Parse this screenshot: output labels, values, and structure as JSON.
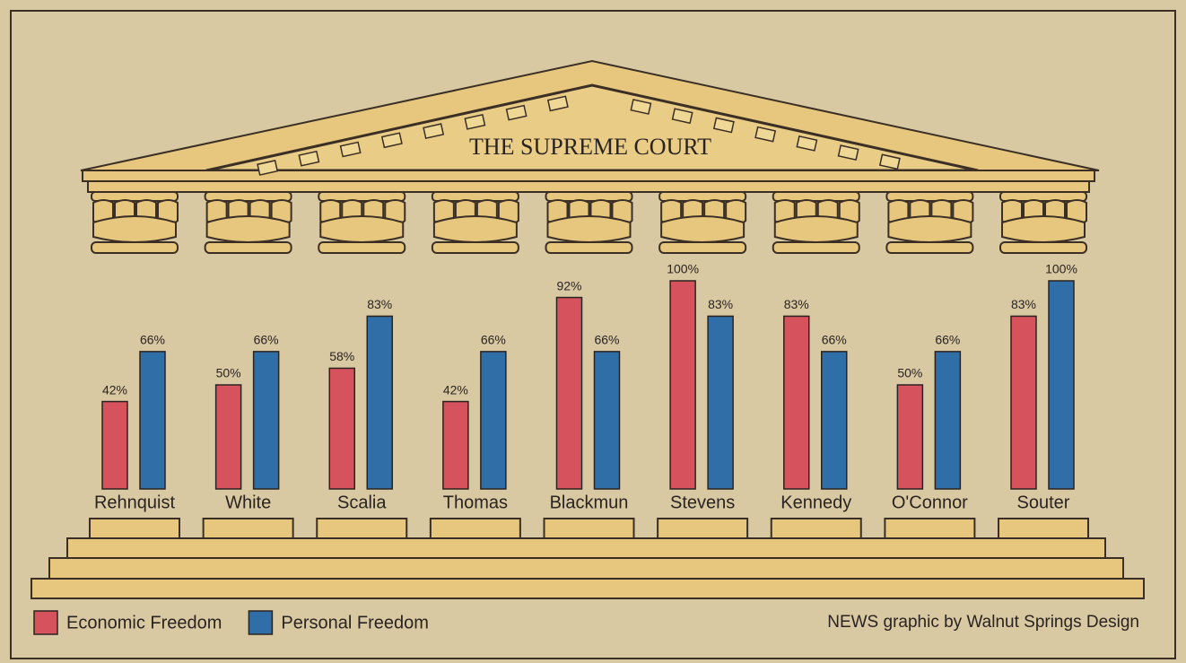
{
  "chart_data": {
    "type": "bar",
    "title": "THE SUPREME COURT",
    "categories": [
      "Rehnquist",
      "White",
      "Scalia",
      "Thomas",
      "Blackmun",
      "Stevens",
      "Kennedy",
      "O'Connor",
      "Souter"
    ],
    "series": [
      {
        "name": "Economic Freedom",
        "color": "#d6525c",
        "values": [
          42,
          50,
          58,
          42,
          92,
          100,
          83,
          50,
          83
        ],
        "value_labels": [
          "42%",
          "50%",
          "58%",
          "42%",
          "92%",
          "100%",
          "83%",
          "50%",
          "83%"
        ]
      },
      {
        "name": "Personal Freedom",
        "color": "#2f6ea6",
        "values": [
          66,
          66,
          83,
          66,
          66,
          83,
          66,
          66,
          100
        ],
        "value_labels": [
          "66%",
          "66%",
          "83%",
          "66%",
          "66%",
          "83%",
          "66%",
          "66%",
          "100%"
        ]
      }
    ],
    "credit": "NEWS graphic by Walnut Springs Design"
  }
}
